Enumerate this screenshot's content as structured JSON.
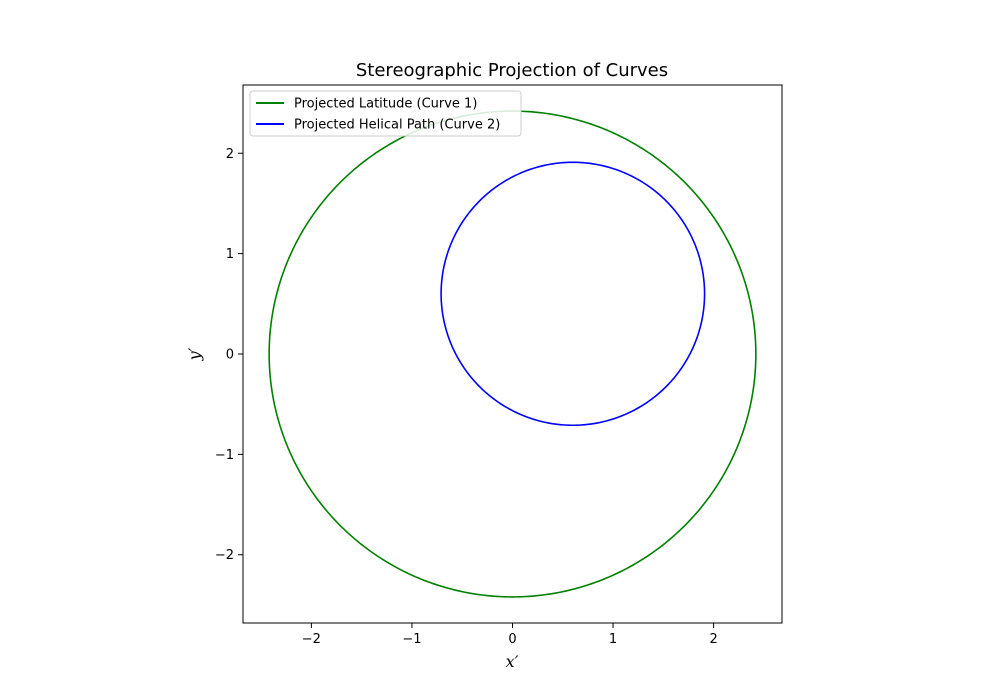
{
  "chart_data": {
    "type": "line",
    "title": "Stereographic Projection of Curves",
    "xlabel": "x′",
    "ylabel": "y′",
    "xlim": [
      -2.68,
      2.68
    ],
    "ylim": [
      -2.68,
      2.68
    ],
    "xticks": [
      -2,
      -1,
      0,
      1,
      2
    ],
    "yticks": [
      -2,
      -1,
      0,
      1,
      2
    ],
    "xtick_labels": [
      "−2",
      "−1",
      "0",
      "1",
      "2"
    ],
    "ytick_labels": [
      "−2",
      "−1",
      "0",
      "1",
      "2"
    ],
    "grid": false,
    "legend_position": "top-left",
    "series": [
      {
        "name": "Projected Latitude (Curve 1)",
        "color": "#008000",
        "shape": "circle",
        "center": [
          0,
          0
        ],
        "radius": 2.42
      },
      {
        "name": "Projected Helical Path (Curve 2)",
        "color": "#0000ff",
        "shape": "circle",
        "center": [
          0.6,
          0.6
        ],
        "radius": 1.31
      }
    ]
  }
}
